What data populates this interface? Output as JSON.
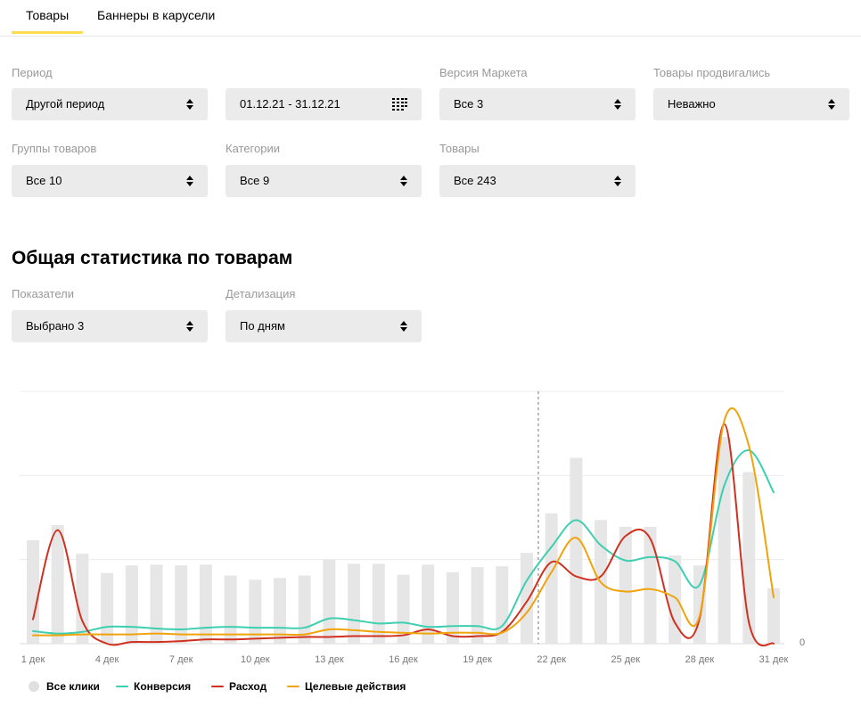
{
  "tabs": [
    {
      "label": "Товары",
      "active": true
    },
    {
      "label": "Баннеры в карусели",
      "active": false
    }
  ],
  "filters": {
    "period": {
      "label": "Период",
      "value": "Другой период"
    },
    "date_range": {
      "value": "01.12.21 - 31.12.21"
    },
    "market_version": {
      "label": "Версия Маркета",
      "value": "Все 3"
    },
    "promoted": {
      "label": "Товары продвигались",
      "value": "Неважно"
    },
    "groups": {
      "label": "Группы товаров",
      "value": "Все 10"
    },
    "categories": {
      "label": "Категории",
      "value": "Все 9"
    },
    "products": {
      "label": "Товары",
      "value": "Все 243"
    }
  },
  "stats": {
    "title": "Общая статистика по товарам",
    "indicators": {
      "label": "Показатели",
      "value": "Выбрано 3"
    },
    "detail": {
      "label": "Детализация",
      "value": "По дням"
    }
  },
  "chart_data": {
    "type": "line",
    "x": [
      "1 дек",
      "2 дек",
      "3 дек",
      "4 дек",
      "5 дек",
      "6 дек",
      "7 дек",
      "8 дек",
      "9 дек",
      "10 дек",
      "11 дек",
      "12 дек",
      "13 дек",
      "14 дек",
      "15 дек",
      "16 дек",
      "17 дек",
      "18 дек",
      "19 дек",
      "20 дек",
      "21 дек",
      "22 дек",
      "23 дек",
      "24 дек",
      "25 дек",
      "26 дек",
      "27 дек",
      "28 дек",
      "29 дек",
      "30 дек",
      "31 дек"
    ],
    "x_tick_labels": [
      "1 дек",
      "4 дек",
      "7 дек",
      "10 дек",
      "13 дек",
      "16 дек",
      "19 дек",
      "22 дек",
      "25 дек",
      "28 дек",
      "31 дек"
    ],
    "y_tick_labels": [
      "0"
    ],
    "ylim": [
      0,
      3
    ],
    "grid": true,
    "marker_date": "21 дек",
    "legend_position": "bottom-left",
    "series": [
      {
        "name": "Все клики",
        "type": "bar",
        "color": "#e6e6e6",
        "values": [
          1.23,
          1.41,
          1.07,
          0.84,
          0.93,
          0.94,
          0.93,
          0.94,
          0.81,
          0.76,
          0.78,
          0.81,
          1.0,
          0.95,
          0.95,
          0.82,
          0.94,
          0.85,
          0.91,
          0.92,
          1.08,
          1.55,
          2.21,
          1.47,
          1.39,
          1.39,
          1.05,
          0.93,
          2.46,
          2.04,
          0.66
        ]
      },
      {
        "name": "Конверсия",
        "type": "line",
        "color": "#3dcfb0",
        "values": [
          0.15,
          0.12,
          0.14,
          0.2,
          0.2,
          0.18,
          0.17,
          0.19,
          0.2,
          0.19,
          0.19,
          0.19,
          0.3,
          0.28,
          0.24,
          0.25,
          0.2,
          0.21,
          0.21,
          0.21,
          0.75,
          1.15,
          1.47,
          1.17,
          0.99,
          1.03,
          0.98,
          0.7,
          1.88,
          2.3,
          1.8
        ]
      },
      {
        "name": "Расход",
        "type": "line",
        "color": "#d0311f",
        "values": [
          0.29,
          1.35,
          0.27,
          0.0,
          0.02,
          0.02,
          0.03,
          0.05,
          0.05,
          0.06,
          0.07,
          0.08,
          0.08,
          0.09,
          0.09,
          0.1,
          0.17,
          0.09,
          0.09,
          0.14,
          0.5,
          0.97,
          0.8,
          0.8,
          1.28,
          1.25,
          0.25,
          0.3,
          2.61,
          0.25,
          0.0
        ]
      },
      {
        "name": "Целевые действия",
        "type": "line",
        "color": "#f0a30a",
        "values": [
          0.1,
          0.1,
          0.11,
          0.11,
          0.11,
          0.12,
          0.11,
          0.11,
          0.11,
          0.11,
          0.11,
          0.11,
          0.17,
          0.16,
          0.14,
          0.13,
          0.12,
          0.13,
          0.13,
          0.13,
          0.37,
          0.85,
          1.26,
          0.73,
          0.62,
          0.65,
          0.55,
          0.33,
          2.65,
          2.35,
          0.55
        ]
      }
    ]
  }
}
